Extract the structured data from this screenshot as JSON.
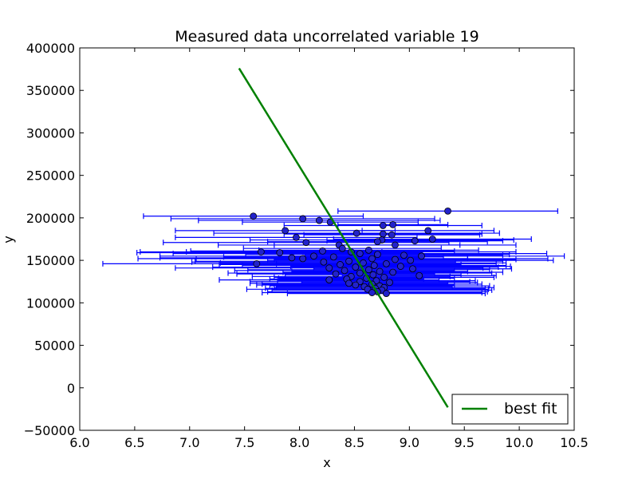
{
  "chart_data": {
    "type": "scatter",
    "title": "Measured data uncorrelated variable 19",
    "xlabel": "x",
    "ylabel": "y",
    "xlim": [
      6.0,
      10.5
    ],
    "ylim": [
      -50000,
      400000
    ],
    "xticks": [
      "6.0",
      "6.5",
      "7.0",
      "7.5",
      "8.0",
      "8.5",
      "9.0",
      "9.5",
      "10.0",
      "10.5"
    ],
    "yticks": [
      "−50000",
      "0",
      "50000",
      "100000",
      "150000",
      "200000",
      "250000",
      "300000",
      "350000",
      "400000"
    ],
    "grid": false,
    "legend": {
      "position": "lower-right",
      "entries": [
        "best fit"
      ]
    },
    "series": [
      {
        "kind": "errorbar-scatter",
        "color": "#0000ff",
        "point_color": "#2222cc",
        "points": [
          [
            7.58,
            202000,
            1.0
          ],
          [
            8.03,
            199000,
            1.2
          ],
          [
            8.18,
            197000,
            1.1
          ],
          [
            8.28,
            195000,
            0.8
          ],
          [
            9.35,
            208000,
            1.0
          ],
          [
            8.76,
            191000,
            0.9
          ],
          [
            8.85,
            192000,
            0.5
          ],
          [
            9.17,
            185000,
            0.6
          ],
          [
            7.87,
            185000,
            1.0
          ],
          [
            8.52,
            182000,
            1.3
          ],
          [
            8.76,
            181000,
            0.9
          ],
          [
            8.84,
            180000,
            0.8
          ],
          [
            9.21,
            175000,
            0.9
          ],
          [
            7.97,
            177000,
            1.1
          ],
          [
            8.75,
            174000,
            1.2
          ],
          [
            8.71,
            172000,
            1.0
          ],
          [
            9.05,
            173000,
            0.8
          ],
          [
            8.06,
            171000,
            1.3
          ],
          [
            8.36,
            168000,
            1.1
          ],
          [
            8.87,
            168000,
            1.1
          ],
          [
            8.39,
            164000,
            0.9
          ],
          [
            8.63,
            162000,
            1.0
          ],
          [
            8.47,
            160000,
            1.5
          ],
          [
            8.21,
            161000,
            1.2
          ],
          [
            7.65,
            160000,
            1.1
          ],
          [
            7.82,
            159000,
            1.3
          ],
          [
            8.55,
            158000,
            1.7
          ],
          [
            8.71,
            157000,
            1.2
          ],
          [
            8.95,
            156000,
            0.9
          ],
          [
            9.11,
            155000,
            1.3
          ],
          [
            8.13,
            155000,
            1.4
          ],
          [
            8.31,
            154000,
            1.0
          ],
          [
            7.93,
            153000,
            1.2
          ],
          [
            8.66,
            152000,
            1.6
          ],
          [
            8.03,
            152000,
            1.5
          ],
          [
            8.87,
            151000,
            1.1
          ],
          [
            9.01,
            150000,
            1.3
          ],
          [
            8.45,
            149000,
            1.4
          ],
          [
            8.22,
            148000,
            1.2
          ],
          [
            8.58,
            147000,
            1.3
          ],
          [
            8.79,
            146000,
            1.0
          ],
          [
            7.61,
            146000,
            1.4
          ],
          [
            8.37,
            145000,
            1.1
          ],
          [
            8.68,
            144000,
            1.2
          ],
          [
            8.92,
            143000,
            1.0
          ],
          [
            8.51,
            142000,
            1.3
          ],
          [
            8.27,
            141000,
            1.4
          ],
          [
            9.03,
            140000,
            0.9
          ],
          [
            8.63,
            139000,
            1.1
          ],
          [
            8.41,
            138000,
            1.0
          ],
          [
            8.73,
            137000,
            0.8
          ],
          [
            8.85,
            136000,
            1.0
          ],
          [
            8.55,
            135000,
            1.2
          ],
          [
            8.33,
            134000,
            0.9
          ],
          [
            8.67,
            133000,
            0.8
          ],
          [
            9.09,
            132000,
            0.7
          ],
          [
            8.47,
            131000,
            0.9
          ],
          [
            8.77,
            130000,
            1.0
          ],
          [
            8.61,
            129000,
            0.8
          ],
          [
            8.43,
            128000,
            0.7
          ],
          [
            8.27,
            127000,
            1.0
          ],
          [
            8.7,
            126000,
            0.9
          ],
          [
            8.55,
            125000,
            1.0
          ],
          [
            8.82,
            124000,
            0.8
          ],
          [
            8.45,
            123000,
            0.9
          ],
          [
            8.66,
            122000,
            1.0
          ],
          [
            8.51,
            121000,
            0.9
          ],
          [
            8.73,
            120000,
            1.0
          ],
          [
            8.59,
            119000,
            0.8
          ],
          [
            8.77,
            118000,
            1.0
          ],
          [
            8.69,
            117000,
            1.0
          ],
          [
            8.62,
            116000,
            1.1
          ],
          [
            8.75,
            115000,
            1.0
          ],
          [
            8.71,
            113000,
            1.0
          ],
          [
            8.79,
            111000,
            0.9
          ],
          [
            8.66,
            112000,
            1.0
          ]
        ]
      }
    ],
    "best_fit": {
      "name": "best fit",
      "color": "#008000",
      "x": [
        7.45,
        9.35
      ],
      "y": [
        376000,
        -23000
      ]
    }
  }
}
